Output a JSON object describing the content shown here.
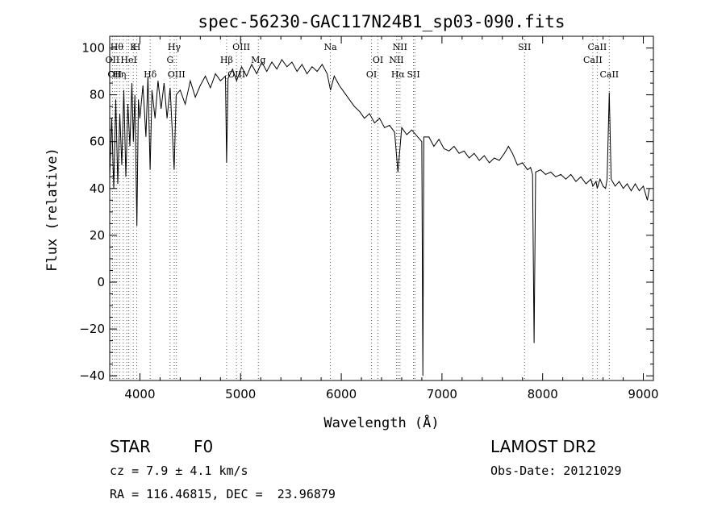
{
  "chart_data": {
    "type": "line",
    "title": "spec-56230-GAC117N24B1_sp03-090.fits",
    "xlabel": "Wavelength (Å)",
    "ylabel": "Flux (relative)",
    "xlim": [
      3700,
      9100
    ],
    "ylim": [
      -42,
      105
    ],
    "xticks": [
      4000,
      5000,
      6000,
      7000,
      8000,
      9000
    ],
    "yticks": [
      -40,
      -20,
      0,
      20,
      40,
      60,
      80,
      100
    ],
    "grid": false,
    "series": [
      {
        "values": [
          [
            3700,
            45
          ],
          [
            3720,
            70
          ],
          [
            3740,
            40
          ],
          [
            3760,
            78
          ],
          [
            3780,
            42
          ],
          [
            3800,
            72
          ],
          [
            3820,
            50
          ],
          [
            3840,
            82
          ],
          [
            3860,
            45
          ],
          [
            3880,
            76
          ],
          [
            3900,
            58
          ],
          [
            3920,
            85
          ],
          [
            3935,
            60
          ],
          [
            3950,
            80
          ],
          [
            3970,
            24
          ],
          [
            3985,
            78
          ],
          [
            4000,
            70
          ],
          [
            4030,
            84
          ],
          [
            4060,
            62
          ],
          [
            4080,
            88
          ],
          [
            4101,
            48
          ],
          [
            4120,
            82
          ],
          [
            4150,
            70
          ],
          [
            4180,
            86
          ],
          [
            4210,
            74
          ],
          [
            4240,
            85
          ],
          [
            4270,
            70
          ],
          [
            4300,
            83
          ],
          [
            4340,
            48
          ],
          [
            4360,
            80
          ],
          [
            4400,
            82
          ],
          [
            4450,
            76
          ],
          [
            4500,
            86
          ],
          [
            4550,
            79
          ],
          [
            4600,
            84
          ],
          [
            4650,
            88
          ],
          [
            4700,
            83
          ],
          [
            4750,
            89
          ],
          [
            4800,
            86
          ],
          [
            4850,
            88
          ],
          [
            4861,
            51
          ],
          [
            4875,
            87
          ],
          [
            4920,
            91
          ],
          [
            4960,
            86
          ],
          [
            5010,
            92
          ],
          [
            5060,
            88
          ],
          [
            5110,
            93
          ],
          [
            5160,
            89
          ],
          [
            5210,
            94
          ],
          [
            5260,
            90
          ],
          [
            5310,
            94
          ],
          [
            5360,
            91
          ],
          [
            5410,
            95
          ],
          [
            5460,
            92
          ],
          [
            5510,
            94
          ],
          [
            5560,
            90
          ],
          [
            5610,
            93
          ],
          [
            5660,
            89
          ],
          [
            5710,
            92
          ],
          [
            5760,
            90
          ],
          [
            5810,
            93
          ],
          [
            5860,
            89
          ],
          [
            5893,
            82
          ],
          [
            5930,
            88
          ],
          [
            5980,
            84
          ],
          [
            6030,
            81
          ],
          [
            6080,
            78
          ],
          [
            6130,
            75
          ],
          [
            6180,
            73
          ],
          [
            6230,
            70
          ],
          [
            6280,
            72
          ],
          [
            6330,
            68
          ],
          [
            6380,
            70
          ],
          [
            6430,
            66
          ],
          [
            6480,
            67
          ],
          [
            6530,
            64
          ],
          [
            6563,
            47
          ],
          [
            6600,
            66
          ],
          [
            6650,
            63
          ],
          [
            6700,
            65
          ],
          [
            6760,
            62
          ],
          [
            6800,
            60
          ],
          [
            6810,
            -40
          ],
          [
            6820,
            62
          ],
          [
            6870,
            62
          ],
          [
            6920,
            58
          ],
          [
            6970,
            61
          ],
          [
            7020,
            57
          ],
          [
            7070,
            56
          ],
          [
            7120,
            58
          ],
          [
            7170,
            55
          ],
          [
            7220,
            56
          ],
          [
            7270,
            53
          ],
          [
            7320,
            55
          ],
          [
            7370,
            52
          ],
          [
            7420,
            54
          ],
          [
            7470,
            51
          ],
          [
            7520,
            53
          ],
          [
            7570,
            52
          ],
          [
            7620,
            55
          ],
          [
            7660,
            58
          ],
          [
            7700,
            55
          ],
          [
            7750,
            50
          ],
          [
            7800,
            51
          ],
          [
            7850,
            48
          ],
          [
            7880,
            49
          ],
          [
            7900,
            46
          ],
          [
            7915,
            -26
          ],
          [
            7930,
            47
          ],
          [
            7980,
            48
          ],
          [
            8030,
            46
          ],
          [
            8080,
            47
          ],
          [
            8130,
            45
          ],
          [
            8180,
            46
          ],
          [
            8230,
            44
          ],
          [
            8280,
            46
          ],
          [
            8330,
            43
          ],
          [
            8380,
            45
          ],
          [
            8430,
            42
          ],
          [
            8480,
            44
          ],
          [
            8498,
            41
          ],
          [
            8530,
            43
          ],
          [
            8542,
            40
          ],
          [
            8570,
            44
          ],
          [
            8600,
            41
          ],
          [
            8625,
            40
          ],
          [
            8640,
            44
          ],
          [
            8662,
            81
          ],
          [
            8680,
            44
          ],
          [
            8720,
            41
          ],
          [
            8760,
            43
          ],
          [
            8800,
            40
          ],
          [
            8840,
            42
          ],
          [
            8880,
            39
          ],
          [
            8920,
            42
          ],
          [
            8960,
            39
          ],
          [
            9000,
            41
          ],
          [
            9040,
            35
          ],
          [
            9060,
            40
          ]
        ]
      }
    ],
    "lines": [
      {
        "x": 3727,
        "label": "OII",
        "row": 1
      },
      {
        "x": 3750,
        "label": "OII",
        "row": 2
      },
      {
        "x": 3771,
        "label": "Hθ",
        "row": 0
      },
      {
        "x": 3798,
        "label": "Hη",
        "row": 2
      },
      {
        "x": 3835,
        "label": "",
        "row": 2
      },
      {
        "x": 3869,
        "label": "",
        "row": 1
      },
      {
        "x": 3889,
        "label": "HeI",
        "row": 1
      },
      {
        "x": 3934,
        "label": "K",
        "row": 0
      },
      {
        "x": 3969,
        "label": "H",
        "row": 0
      },
      {
        "x": 4102,
        "label": "Hδ",
        "row": 2
      },
      {
        "x": 4300,
        "label": "G",
        "row": 1
      },
      {
        "x": 4341,
        "label": "Hγ",
        "row": 0
      },
      {
        "x": 4363,
        "label": "OIII",
        "row": 2
      },
      {
        "x": 4861,
        "label": "Hβ",
        "row": 1
      },
      {
        "x": 4959,
        "label": "OIII",
        "row": 2
      },
      {
        "x": 5007,
        "label": "OIII",
        "row": 0
      },
      {
        "x": 5176,
        "label": "Mg",
        "row": 1
      },
      {
        "x": 5892,
        "label": "Na",
        "row": 0
      },
      {
        "x": 6300,
        "label": "OI",
        "row": 2
      },
      {
        "x": 6364,
        "label": "OI",
        "row": 1
      },
      {
        "x": 6548,
        "label": "NII",
        "row": 1
      },
      {
        "x": 6563,
        "label": "Hα",
        "row": 2
      },
      {
        "x": 6583,
        "label": "NII",
        "row": 0
      },
      {
        "x": 6717,
        "label": "SII",
        "row": 2
      },
      {
        "x": 6731,
        "label": "",
        "row": 2
      },
      {
        "x": 7820,
        "label": "SII",
        "row": 0
      },
      {
        "x": 8498,
        "label": "CaII",
        "row": 1
      },
      {
        "x": 8542,
        "label": "CaII",
        "row": 0
      },
      {
        "x": 8662,
        "label": "CaII",
        "row": 2
      }
    ]
  },
  "info": {
    "class_label": "STAR",
    "subclass": "F0",
    "survey": "LAMOST DR2",
    "cz": "cz = 7.9 ± 4.1 km/s",
    "obs_date": "Obs-Date: 20121029",
    "coords": "RA = 116.46815, DEC =  23.96879"
  }
}
